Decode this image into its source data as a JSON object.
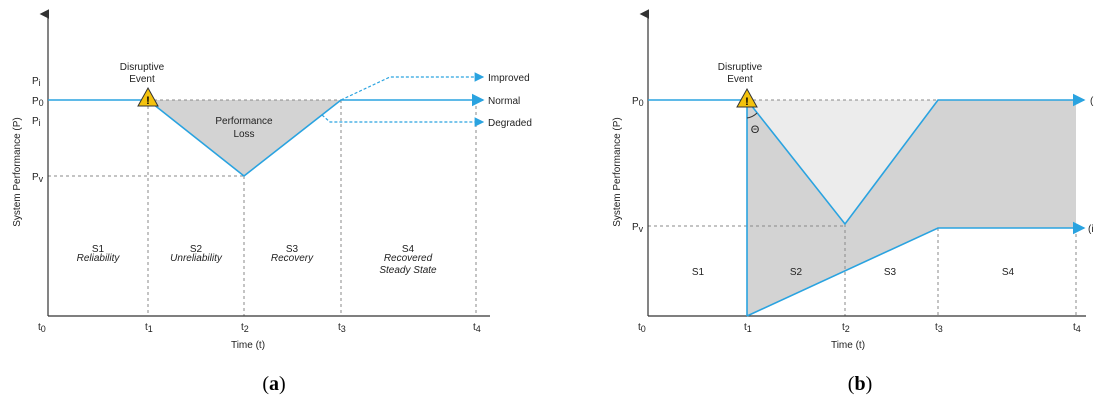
{
  "panel_a": {
    "caption_open": "(",
    "caption_letter": "a",
    "caption_close": ")",
    "y_axis_label": "System Performance (P)",
    "x_axis_label": "Time (t)",
    "event_label_line1": "Disruptive",
    "event_label_line2": "Event",
    "loss_label_line1": "Performance",
    "loss_label_line2": "Loss",
    "y_ticks": [
      "P",
      "P",
      "P",
      "P"
    ],
    "y_tick_subs": [
      "i",
      "0",
      "i",
      "v"
    ],
    "x_ticks": [
      "t",
      "t",
      "t",
      "t",
      "t"
    ],
    "x_tick_subs": [
      "0",
      "1",
      "2",
      "3",
      "4"
    ],
    "outcomes": [
      "Improved",
      "Normal",
      "Degraded"
    ],
    "stages": [
      {
        "name": "S1",
        "desc_line1": "Reliability",
        "desc_line2": ""
      },
      {
        "name": "S2",
        "desc_line1": "Unreliability",
        "desc_line2": ""
      },
      {
        "name": "S3",
        "desc_line1": "Recovery",
        "desc_line2": ""
      },
      {
        "name": "S4",
        "desc_line1": "Recovered",
        "desc_line2": "Steady State"
      }
    ]
  },
  "panel_b": {
    "caption_open": "(",
    "caption_letter": "b",
    "caption_close": ")",
    "y_axis_label": "System Performance (P)",
    "x_axis_label": "Time (t)",
    "event_label_line1": "Disruptive",
    "event_label_line2": "Event",
    "theta": "Θ",
    "y_ticks": [
      "P",
      "P"
    ],
    "y_tick_subs": [
      "0",
      "v"
    ],
    "x_ticks": [
      "t",
      "t",
      "t",
      "t",
      "t"
    ],
    "x_tick_subs": [
      "0",
      "1",
      "2",
      "3",
      "4"
    ],
    "right_labels": [
      "(",
      "(i"
    ],
    "stages": [
      "S1",
      "S2",
      "S3",
      "S4"
    ]
  },
  "colors": {
    "curve": "#2aa3e0",
    "fill_dark": "#d3d3d3",
    "fill_light": "#ececec",
    "warning": "#f4c20d"
  }
}
